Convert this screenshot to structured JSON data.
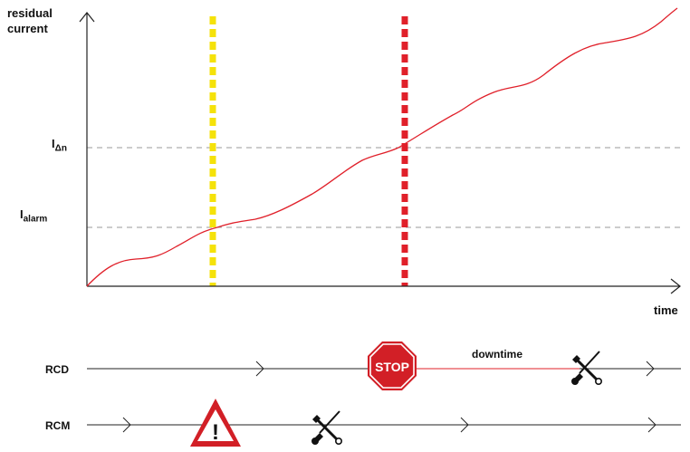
{
  "chart": {
    "y_axis_label_line1": "residual",
    "y_axis_label_line2": "current",
    "x_axis_label": "time",
    "threshold_trip_label": "I",
    "threshold_trip_sub": "Δn",
    "threshold_alarm_label": "I",
    "threshold_alarm_sub": "alarm"
  },
  "timeline": {
    "rcd_label": "RCD",
    "rcm_label": "RCM",
    "downtime_label": "downtime",
    "stop_sign_text": "STOP",
    "warning_symbol": "!"
  },
  "icons": {
    "stop": "stop-sign-icon",
    "warning": "warning-triangle-icon",
    "tools": "wrench-screwdriver-icon"
  },
  "colors": {
    "curve": "#e0202a",
    "alarm_marker": "#f5e20a",
    "trip_marker": "#e0202a",
    "threshold_line": "#999999",
    "axis": "#222222",
    "stop_red": "#d21f26",
    "warning_red": "#d21f26"
  }
}
